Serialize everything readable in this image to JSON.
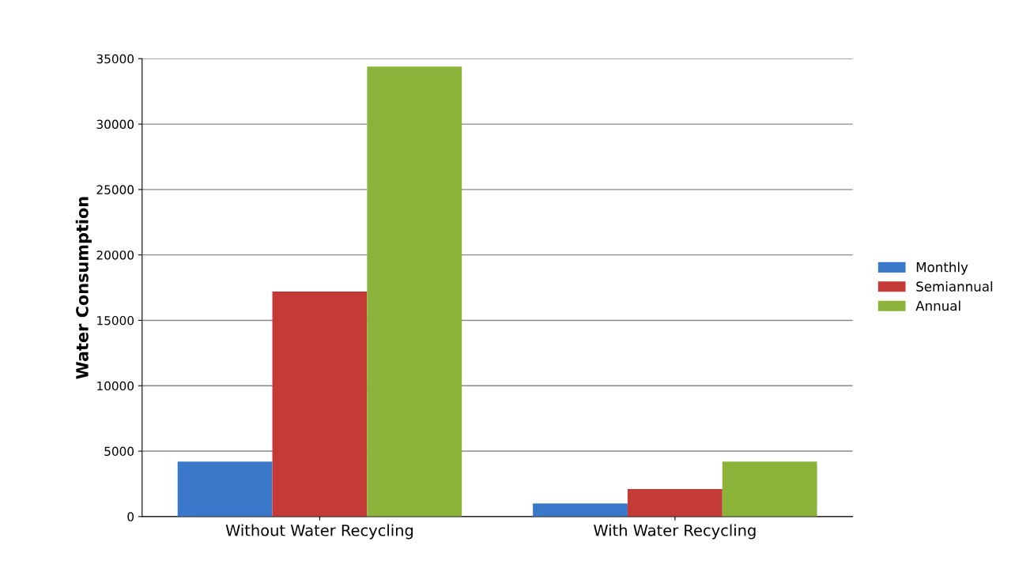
{
  "chart_data": {
    "type": "bar",
    "ylabel": "Water Consumption",
    "categories": [
      "Without Water Recycling",
      "With Water Recycling"
    ],
    "series": [
      {
        "name": "Monthly",
        "color": "#3a78c9",
        "values": [
          4200,
          1000
        ]
      },
      {
        "name": "Semiannual",
        "color": "#c43a36",
        "values": [
          17200,
          2100
        ]
      },
      {
        "name": "Annual",
        "color": "#8cb43a",
        "values": [
          34400,
          4200
        ]
      }
    ],
    "ylim": [
      0,
      35000
    ],
    "yticks": [
      0,
      5000,
      10000,
      15000,
      20000,
      25000,
      30000,
      35000
    ],
    "grid": "y",
    "legend": "right"
  }
}
